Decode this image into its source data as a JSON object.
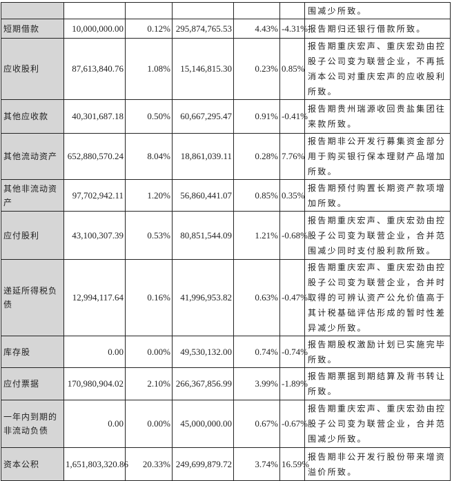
{
  "top_row_note": "围减少所致。",
  "rows": [
    {
      "item": "短期借款",
      "current_amount": "10,000,000.00",
      "current_pct": "0.12%",
      "prior_amount": "295,874,765.53",
      "prior_pct": "4.43%",
      "change": "-4.31%",
      "note": "报告期归还银行借款所致。"
    },
    {
      "item": "应收股利",
      "current_amount": "87,613,840.76",
      "current_pct": "1.08%",
      "prior_amount": "15,146,815.30",
      "prior_pct": "0.23%",
      "change": "0.85%",
      "note": "报告期重庆宏声、重庆宏劲由控股子公司变为联营企业，不再抵消本公司对重庆宏声的应收股利所致。"
    },
    {
      "item": "其他应收款",
      "current_amount": "40,301,687.18",
      "current_pct": "0.50%",
      "prior_amount": "60,667,295.47",
      "prior_pct": "0.91%",
      "change": "-0.41%",
      "note": "报告期贵州瑞源收回贵盐集团往来款所致。"
    },
    {
      "item": "其他流动资产",
      "current_amount": "652,880,570.24",
      "current_pct": "8.04%",
      "prior_amount": "18,861,039.11",
      "prior_pct": "0.28%",
      "change": "7.76%",
      "note": "报告期非公开发行募集资金部分用于购买银行保本理财产品增加所致。"
    },
    {
      "item": "其他非流动资产",
      "current_amount": "97,702,942.11",
      "current_pct": "1.20%",
      "prior_amount": "56,860,441.07",
      "prior_pct": "0.85%",
      "change": "0.35%",
      "note": "报告期预付购置长期资产款项增加所致。"
    },
    {
      "item": "应付股利",
      "current_amount": "43,100,307.39",
      "current_pct": "0.53%",
      "prior_amount": "80,851,544.09",
      "prior_pct": "1.21%",
      "change": "-0.68%",
      "note": "报告期重庆宏声、重庆宏劲由控股子公司变为联营企业，合并范围减少同时支付股利款所致。"
    },
    {
      "item": "递延所得税负债",
      "current_amount": "12,994,117.64",
      "current_pct": "0.16%",
      "prior_amount": "41,996,953.82",
      "prior_pct": "0.63%",
      "change": "-0.47%",
      "note": "报告期重庆宏声、重庆宏劲由控股子公司变为联营企业，合并时取得的可辨认资产公允价值高于其计税基础评估形成的暂时性差异减少所致。"
    },
    {
      "item": "库存股",
      "current_amount": "0.00",
      "current_pct": "0.00%",
      "prior_amount": "49,530,132.00",
      "prior_pct": "0.74%",
      "change": "-0.74%",
      "note": "报告期股权激励计划已实施完毕所致。"
    },
    {
      "item": "应付票据",
      "current_amount": "170,980,904.02",
      "current_pct": "2.10%",
      "prior_amount": "266,367,856.99",
      "prior_pct": "3.99%",
      "change": "-1.89%",
      "note": "报告期票据到期结算及背书转让所致。"
    },
    {
      "item": "一年内到期的非流动负债",
      "current_amount": "0.00",
      "current_pct": "0.00%",
      "prior_amount": "45,000,000.00",
      "prior_pct": "0.67%",
      "change": "-0.67%",
      "note": "报告期重庆宏声、重庆宏劲由控股子公司变为联营企业，合并范围减少所致。"
    },
    {
      "item": "资本公积",
      "current_amount": "1,651,803,320.86",
      "current_pct": "20.33%",
      "prior_amount": "249,699,879.72",
      "prior_pct": "3.74%",
      "change": "16.59%",
      "note": "报告期非公开发行股份带来增资溢价所致。"
    }
  ]
}
